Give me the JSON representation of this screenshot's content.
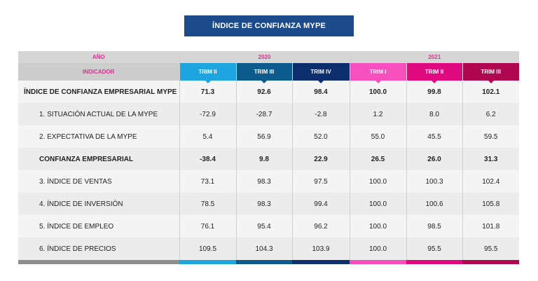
{
  "title": "ÍNDICE DE CONFIANZA MYPE",
  "year_label": "AÑO",
  "indicator_label": "INDICADOR",
  "years": [
    "2020",
    "2021"
  ],
  "quarters": [
    {
      "label": "TRIM II",
      "color": "#1ea5e0"
    },
    {
      "label": "TRIM III",
      "color": "#0d5a8c"
    },
    {
      "label": "TRIM IV",
      "color": "#0d2f6e"
    },
    {
      "label": "TRIM I",
      "color": "#f74fbd"
    },
    {
      "label": "TRIM II",
      "color": "#e0097f"
    },
    {
      "label": "TRIM III",
      "color": "#b0064f"
    }
  ],
  "rows": [
    {
      "label": "ÍNDICE DE CONFIANZA EMPRESARIAL MYPE",
      "values": [
        "71.3",
        "92.6",
        "98.4",
        "100.0",
        "99.8",
        "102.1"
      ]
    },
    {
      "label": "1. SITUACIÓN ACTUAL DE LA MYPE",
      "values": [
        "-72.9",
        "-28.7",
        "-2.8",
        "1.2",
        "8.0",
        "6.2"
      ]
    },
    {
      "label": "2. EXPECTATIVA DE LA MYPE",
      "values": [
        "5.4",
        "56.9",
        "52.0",
        "55.0",
        "45.5",
        "59.5"
      ]
    },
    {
      "label": "CONFIANZA EMPRESARIAL",
      "values": [
        "-38.4",
        "9.8",
        "22.9",
        "26.5",
        "26.0",
        "31.3"
      ]
    },
    {
      "label": "3. ÍNDICE DE VENTAS",
      "values": [
        "73.1",
        "98.3",
        "97.5",
        "100.0",
        "100.3",
        "102.4"
      ]
    },
    {
      "label": "4. ÍNDICE DE INVERSIÓN",
      "values": [
        "78.5",
        "98.3",
        "99.4",
        "100.0",
        "100.6",
        "105.8"
      ]
    },
    {
      "label": "5. ÍNDICE DE EMPLEO",
      "values": [
        "76.1",
        "95.4",
        "96.2",
        "100.0",
        "98.5",
        "101.8"
      ]
    },
    {
      "label": "6. ÍNDICE DE PRECIOS",
      "values": [
        "109.5",
        "104.3",
        "103.9",
        "100.0",
        "95.5",
        "95.5"
      ]
    }
  ]
}
